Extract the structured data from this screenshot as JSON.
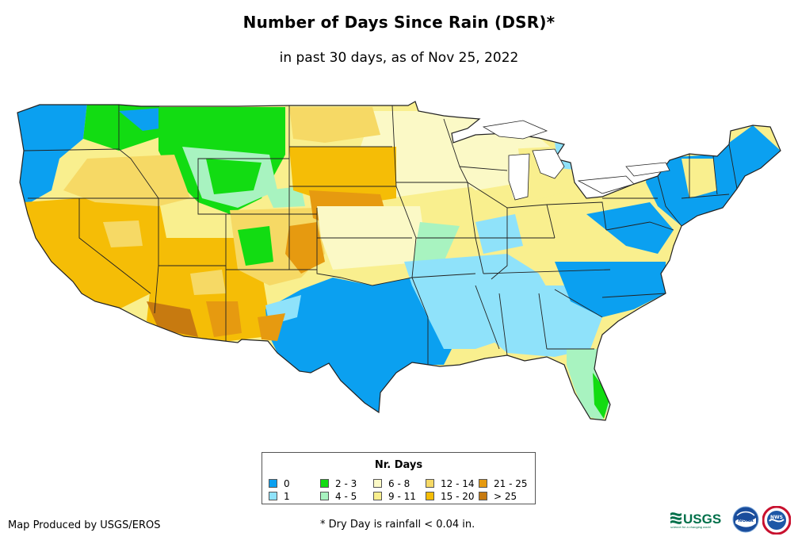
{
  "title": "Number of Days Since Rain (DSR)*",
  "subtitle": "in past 30 days, as of Nov 25, 2022",
  "legend": {
    "title": "Nr. Days",
    "items": [
      {
        "label": "0",
        "color": "#0ba0f0"
      },
      {
        "label": "1",
        "color": "#8fe2fa"
      },
      {
        "label": "2 - 3",
        "color": "#12dc12"
      },
      {
        "label": "4 - 5",
        "color": "#a8f3c0"
      },
      {
        "label": "6 - 8",
        "color": "#fbf9c6"
      },
      {
        "label": "9 - 11",
        "color": "#f9ef8e"
      },
      {
        "label": "12 - 14",
        "color": "#f6d965"
      },
      {
        "label": "15 - 20",
        "color": "#f5bd06"
      },
      {
        "label": "21 - 25",
        "color": "#e69a10"
      },
      {
        "label": "> 25",
        "color": "#c77a10"
      }
    ]
  },
  "credit": "Map Produced by USGS/EROS",
  "footnote": "* Dry Day is rainfall < 0.04 in.",
  "logos": {
    "usgs": {
      "text": "USGS",
      "tagline": "science for a changing world"
    },
    "noaa": {
      "text": "NOAA"
    },
    "nws": {
      "text": "NWS"
    }
  }
}
